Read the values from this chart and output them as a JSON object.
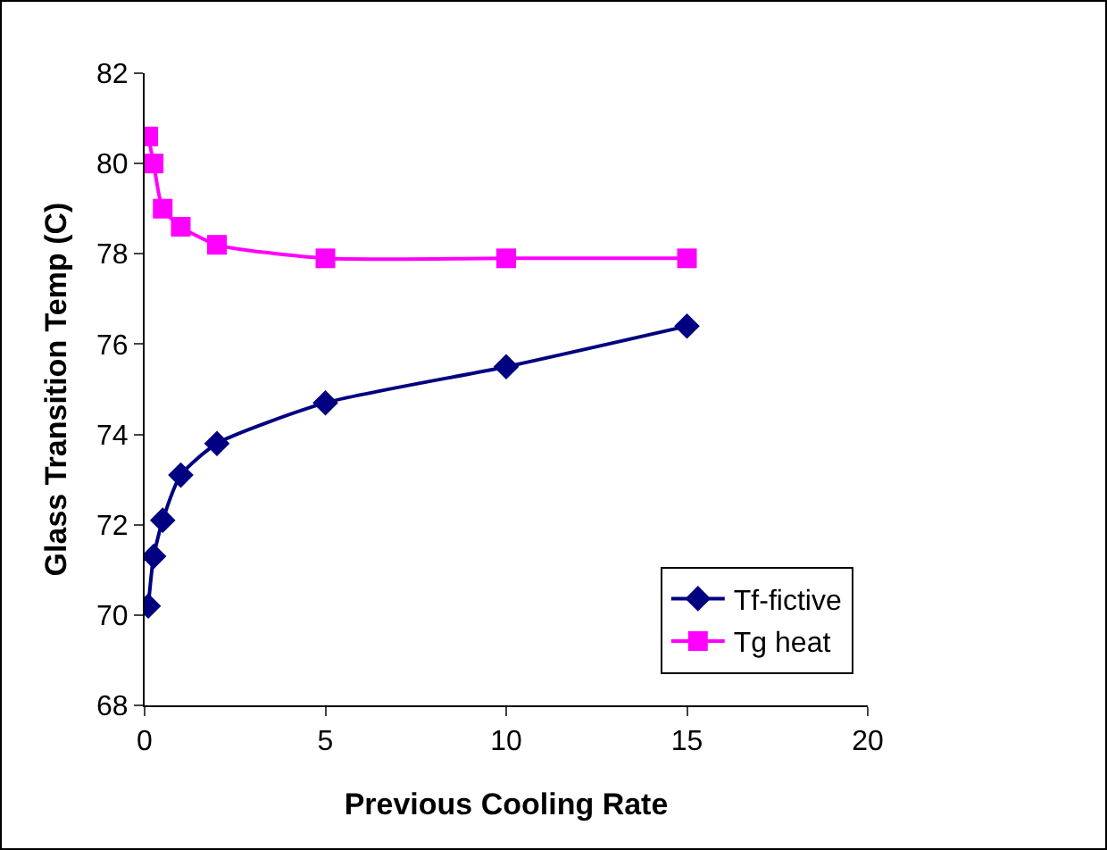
{
  "chart_data": {
    "type": "line",
    "xlabel": "Previous Cooling Rate",
    "ylabel": "Glass Transition Temp (C)",
    "xlim": [
      0,
      20
    ],
    "xticks": [
      0,
      5,
      10,
      15,
      20
    ],
    "ylim": [
      68,
      82
    ],
    "yticks": [
      68,
      70,
      72,
      74,
      76,
      78,
      80,
      82
    ],
    "grid": false,
    "legend": "bottom right",
    "series": [
      {
        "name": "Tf-fictive",
        "color": "#000080",
        "marker": "diamond",
        "x": [
          0.1,
          0.25,
          0.5,
          1,
          2,
          5,
          10,
          15
        ],
        "values": [
          70.2,
          71.3,
          72.1,
          73.1,
          73.8,
          74.7,
          75.5,
          76.4
        ]
      },
      {
        "name": "Tg heat",
        "color": "#ff00ff",
        "marker": "square",
        "x": [
          0.1,
          0.25,
          0.5,
          1,
          2,
          5,
          10,
          15
        ],
        "values": [
          80.6,
          80.0,
          79.0,
          78.6,
          78.2,
          77.9,
          77.9,
          77.9
        ]
      }
    ]
  }
}
